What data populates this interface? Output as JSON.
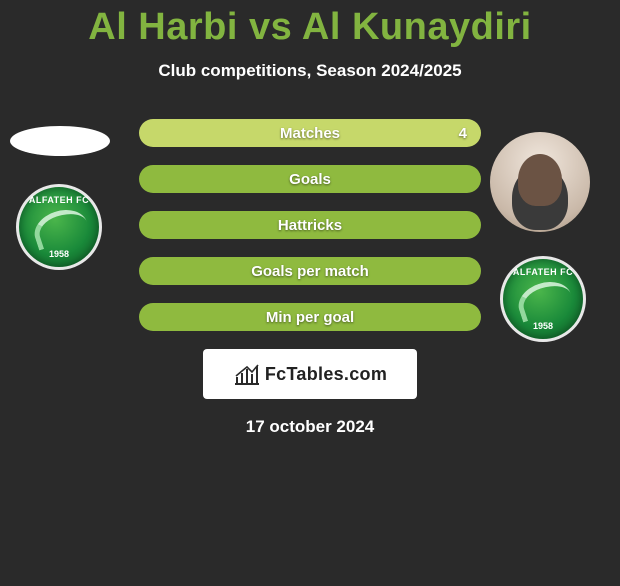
{
  "title_color": "#82b440",
  "background_color": "#2a2a2a",
  "text_color": "#ffffff",
  "title": "Al Harbi vs Al Kunaydiri",
  "subtitle": "Club competitions, Season 2024/2025",
  "stat_row_bg": "#8fba3f",
  "stat_row_highlight_bg": "#c6d86a",
  "stats": [
    {
      "label": "Matches",
      "value_right": "4",
      "highlighted": true
    },
    {
      "label": "Goals",
      "value_right": "",
      "highlighted": false
    },
    {
      "label": "Hattricks",
      "value_right": "",
      "highlighted": false
    },
    {
      "label": "Goals per match",
      "value_right": "",
      "highlighted": false
    },
    {
      "label": "Min per goal",
      "value_right": "",
      "highlighted": false
    }
  ],
  "brand": {
    "text": "FcTables.com",
    "icon_color": "#2a2a2a"
  },
  "date": "17 october 2024",
  "club_badge": {
    "top_text": "ALFATEH FC",
    "bottom_text": "1958"
  }
}
